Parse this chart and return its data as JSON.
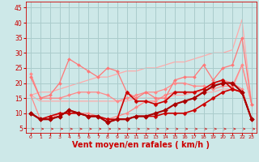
{
  "background_color": "#cde8e8",
  "grid_color": "#aacccc",
  "xlabel": "Vent moyen/en rafales ( km/h )",
  "xlabel_color": "#cc0000",
  "xlabel_fontsize": 7,
  "tick_color": "#cc0000",
  "yticks": [
    5,
    10,
    15,
    20,
    25,
    30,
    35,
    40,
    45
  ],
  "xticks": [
    0,
    1,
    2,
    3,
    4,
    5,
    6,
    7,
    8,
    9,
    10,
    11,
    12,
    13,
    14,
    15,
    16,
    17,
    18,
    19,
    20,
    21,
    22,
    23
  ],
  "ylim": [
    3.5,
    47
  ],
  "xlim": [
    -0.5,
    23.5
  ],
  "lines": [
    {
      "x": [
        0,
        1,
        2,
        3,
        4,
        5,
        6,
        7,
        8,
        9,
        10,
        11,
        12,
        13,
        14,
        15,
        16,
        17,
        18,
        19,
        20,
        21,
        22,
        23
      ],
      "y": [
        16,
        17,
        17,
        18,
        19,
        20,
        21,
        22,
        22,
        23,
        24,
        24,
        25,
        25,
        26,
        27,
        27,
        28,
        29,
        30,
        30,
        31,
        41,
        13
      ],
      "color": "#ffaaaa",
      "lw": 0.9,
      "marker": null,
      "ms": 0,
      "zorder": 1
    },
    {
      "x": [
        0,
        1,
        2,
        3,
        4,
        5,
        6,
        7,
        8,
        9,
        10,
        11,
        12,
        13,
        14,
        15,
        16,
        17,
        18,
        19,
        20,
        21,
        22,
        23
      ],
      "y": [
        16,
        14,
        14,
        14,
        14,
        14,
        14,
        14,
        14,
        14,
        14,
        15,
        15,
        15,
        15,
        16,
        16,
        17,
        17,
        17,
        18,
        18,
        26,
        13
      ],
      "color": "#ffaaaa",
      "lw": 0.9,
      "marker": null,
      "ms": 0,
      "zorder": 1
    },
    {
      "x": [
        0,
        1,
        2,
        3,
        4,
        5,
        6,
        7,
        8,
        9,
        10,
        11,
        12,
        13,
        14,
        15,
        16,
        17,
        18,
        19,
        20,
        21,
        22,
        23
      ],
      "y": [
        23,
        15,
        15,
        15,
        16,
        17,
        17,
        17,
        16,
        14,
        15,
        16,
        17,
        17,
        18,
        20,
        20,
        19,
        19,
        18,
        19,
        19,
        26,
        13
      ],
      "color": "#ff8888",
      "lw": 0.9,
      "marker": "D",
      "ms": 2.0,
      "zorder": 2
    },
    {
      "x": [
        0,
        1,
        2,
        3,
        4,
        5,
        6,
        7,
        8,
        9,
        10,
        11,
        12,
        13,
        14,
        15,
        16,
        17,
        18,
        19,
        20,
        21,
        22,
        23
      ],
      "y": [
        16,
        8,
        8,
        10,
        10,
        10,
        10,
        9,
        8,
        9,
        10,
        12,
        14,
        14,
        16,
        17,
        17,
        17,
        18,
        20,
        21,
        20,
        18,
        8
      ],
      "color": "#ff8888",
      "lw": 0.9,
      "marker": "D",
      "ms": 2.0,
      "zorder": 2
    },
    {
      "x": [
        0,
        1,
        2,
        3,
        4,
        5,
        6,
        7,
        8,
        9,
        10,
        11,
        12,
        13,
        14,
        15,
        16,
        17,
        18,
        19,
        20,
        21,
        22,
        23
      ],
      "y": [
        22,
        15,
        16,
        20,
        28,
        26,
        24,
        22,
        25,
        24,
        17,
        15,
        17,
        15,
        15,
        21,
        22,
        22,
        26,
        21,
        25,
        26,
        35,
        13
      ],
      "color": "#ff7777",
      "lw": 0.9,
      "marker": "D",
      "ms": 2.0,
      "zorder": 2
    },
    {
      "x": [
        0,
        1,
        2,
        3,
        4,
        5,
        6,
        7,
        8,
        9,
        10,
        11,
        12,
        13,
        14,
        15,
        16,
        17,
        18,
        19,
        20,
        21,
        22,
        23
      ],
      "y": [
        10,
        8,
        8,
        9,
        11,
        10,
        9,
        9,
        7,
        8,
        17,
        14,
        14,
        13,
        14,
        17,
        17,
        17,
        18,
        20,
        21,
        18,
        17,
        8
      ],
      "color": "#cc0000",
      "lw": 1.2,
      "marker": "D",
      "ms": 2.5,
      "zorder": 4
    },
    {
      "x": [
        0,
        1,
        2,
        3,
        4,
        5,
        6,
        7,
        8,
        9,
        10,
        11,
        12,
        13,
        14,
        15,
        16,
        17,
        18,
        19,
        20,
        21,
        22,
        23
      ],
      "y": [
        10,
        8,
        9,
        10,
        10,
        10,
        9,
        9,
        8,
        8,
        8,
        9,
        9,
        9,
        10,
        10,
        10,
        11,
        13,
        15,
        17,
        18,
        17,
        8
      ],
      "color": "#cc0000",
      "lw": 1.2,
      "marker": "D",
      "ms": 2.5,
      "zorder": 4
    },
    {
      "x": [
        0,
        1,
        2,
        3,
        4,
        5,
        6,
        7,
        8,
        9,
        10,
        11,
        12,
        13,
        14,
        15,
        16,
        17,
        18,
        19,
        20,
        21,
        22,
        23
      ],
      "y": [
        10,
        8,
        8,
        9,
        11,
        10,
        9,
        9,
        7,
        8,
        8,
        9,
        9,
        10,
        11,
        13,
        14,
        15,
        17,
        19,
        20,
        20,
        17,
        8
      ],
      "color": "#aa0000",
      "lw": 1.5,
      "marker": "D",
      "ms": 3.0,
      "zorder": 5
    }
  ],
  "arrows": {
    "y_data": 4.8,
    "color": "#cc3333",
    "lw": 0.6
  }
}
